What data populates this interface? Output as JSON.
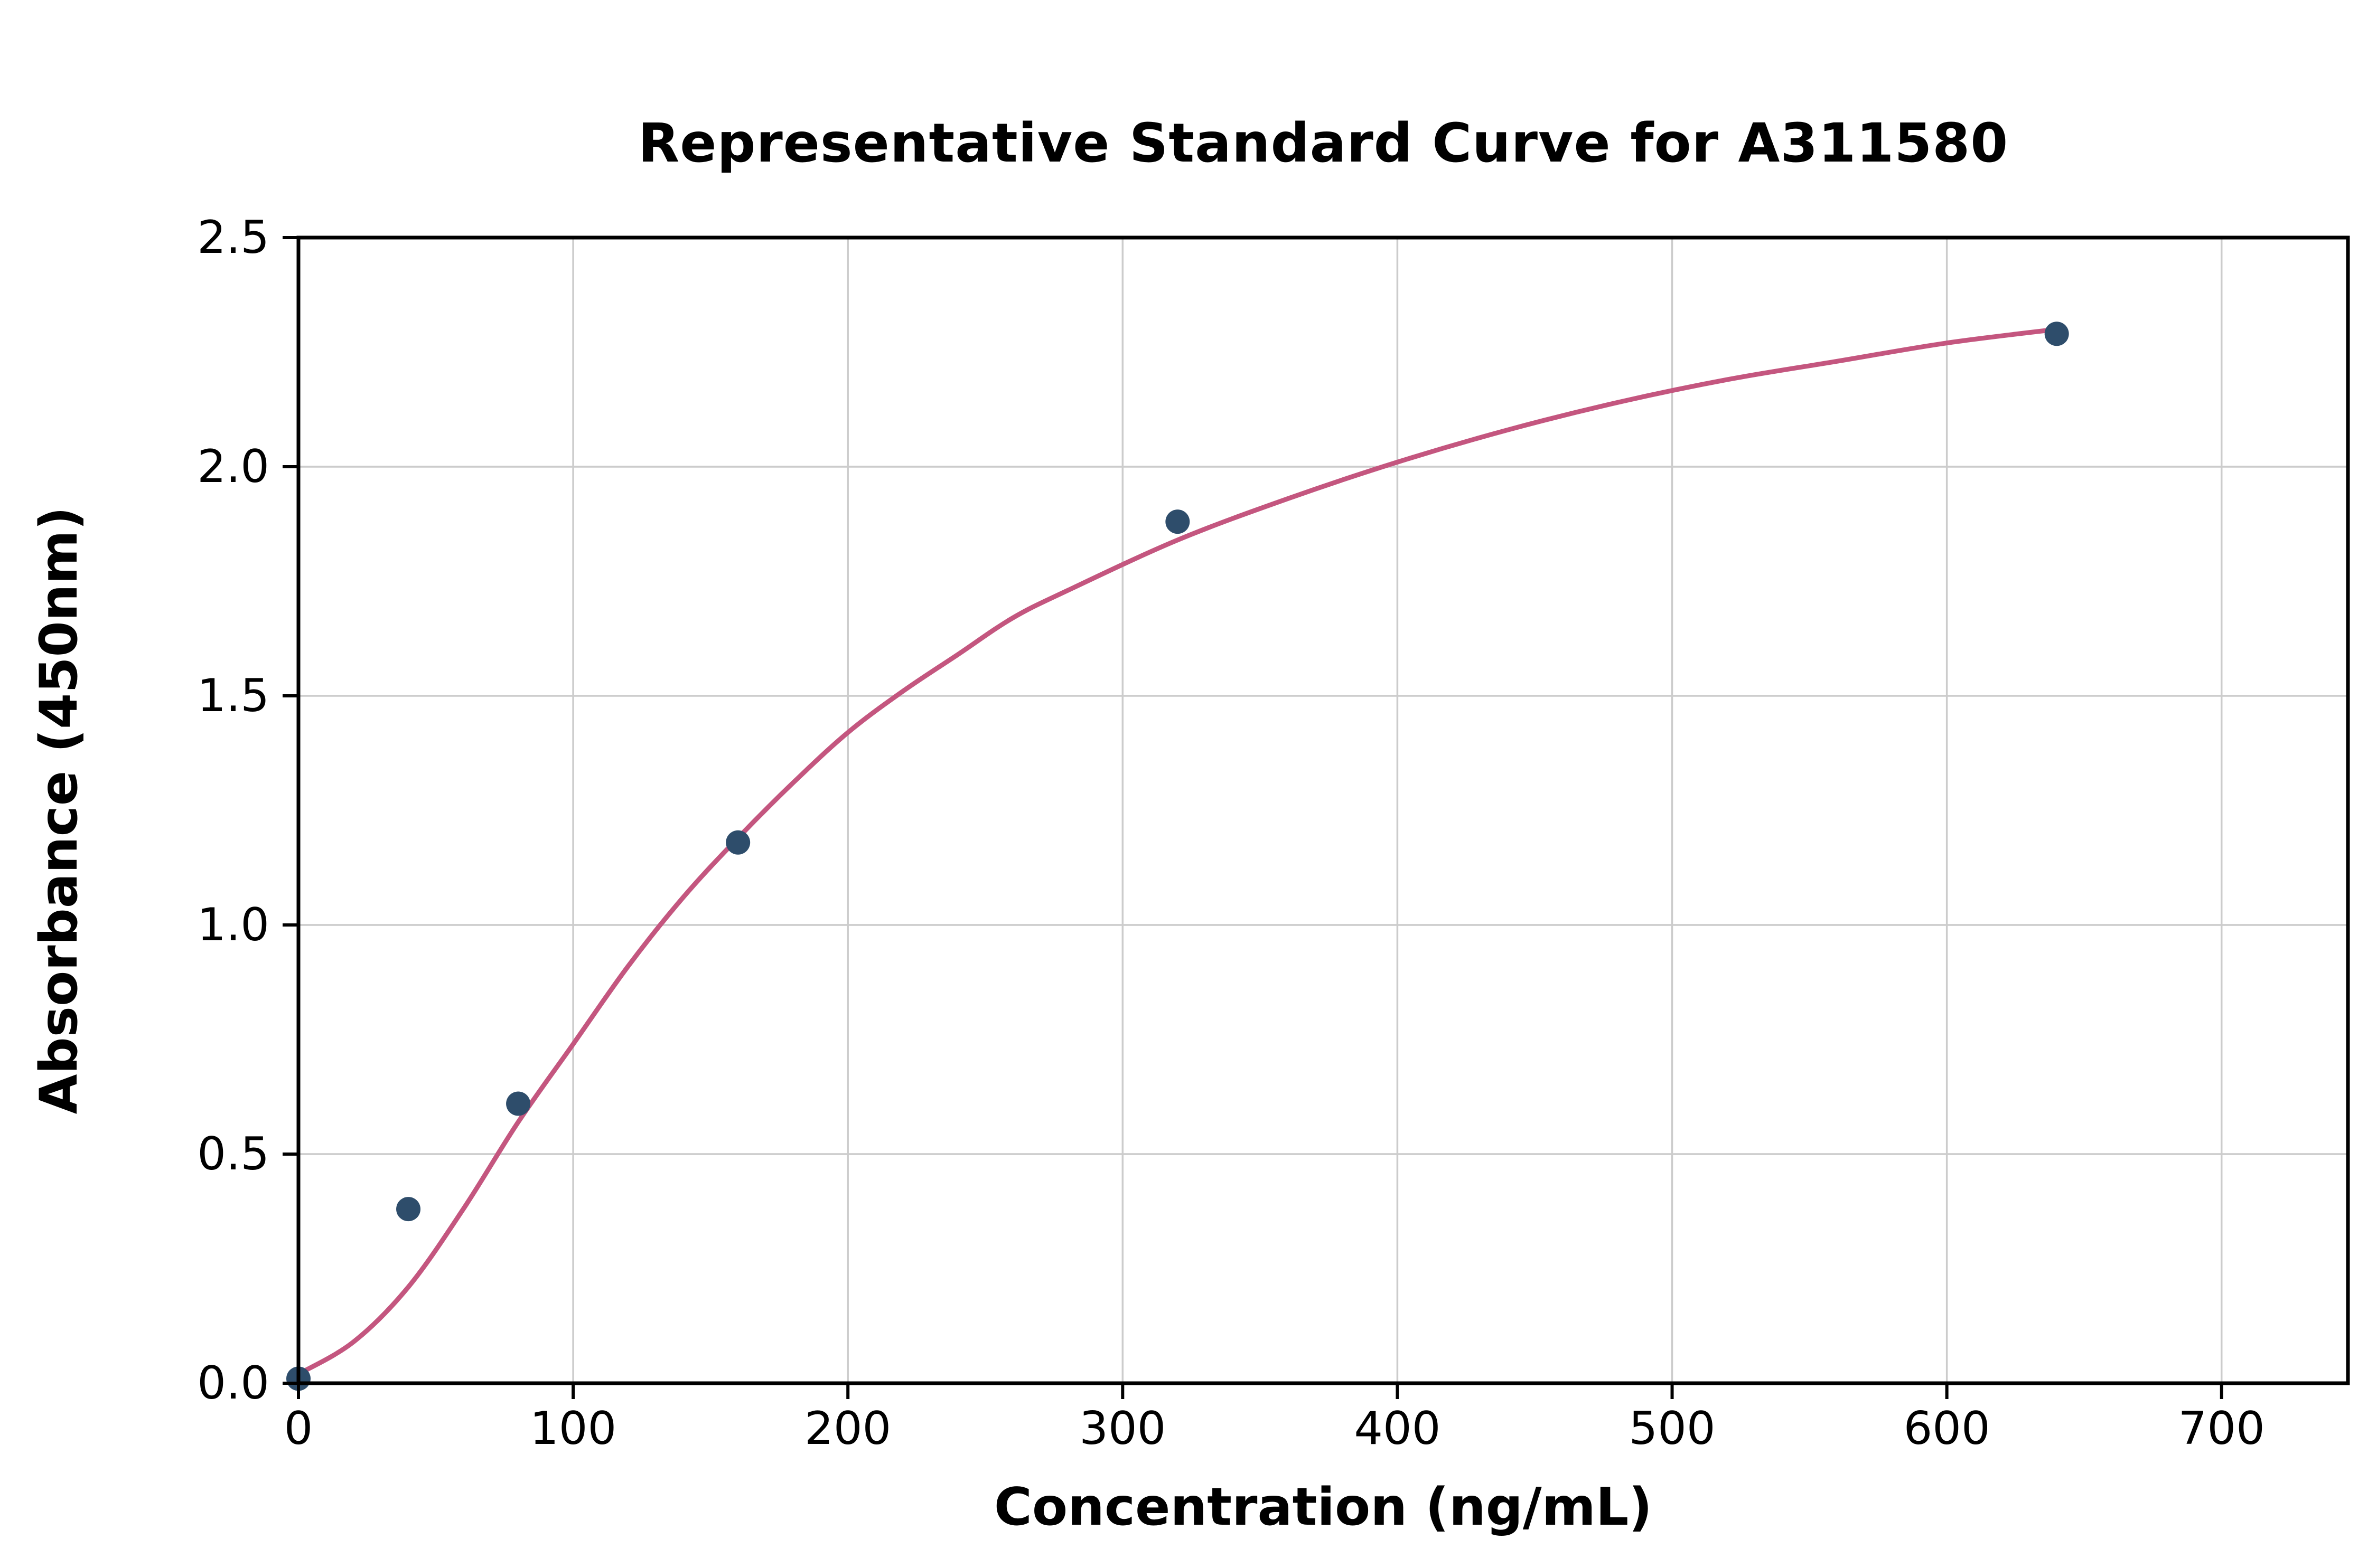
{
  "chart_data": {
    "type": "scatter",
    "title": "Representative Standard Curve for A311580",
    "xlabel": "Concentration (ng/mL)",
    "ylabel": "Absorbance (450nm)",
    "xlim": [
      0,
      746
    ],
    "ylim": [
      0,
      2.5
    ],
    "x_ticks": [
      0,
      100,
      200,
      300,
      400,
      500,
      600,
      700
    ],
    "y_ticks": [
      0,
      0.5,
      1,
      1.5,
      2,
      2.5
    ],
    "grid": true,
    "legend": "none",
    "colors": {
      "points": "#2e4d6b",
      "curve": "#c4567f",
      "grid": "#cccccc",
      "axis": "#000000",
      "background": "#ffffff"
    },
    "series": [
      {
        "name": "fit-curve",
        "type": "line",
        "color": "#c4567f",
        "points": [
          [
            0,
            0.02
          ],
          [
            20,
            0.09
          ],
          [
            40,
            0.21
          ],
          [
            60,
            0.38
          ],
          [
            80,
            0.57
          ],
          [
            100,
            0.74
          ],
          [
            120,
            0.91
          ],
          [
            140,
            1.06
          ],
          [
            160,
            1.19
          ],
          [
            180,
            1.31
          ],
          [
            200,
            1.42
          ],
          [
            220,
            1.51
          ],
          [
            240,
            1.59
          ],
          [
            260,
            1.67
          ],
          [
            280,
            1.73
          ],
          [
            320,
            1.84
          ],
          [
            360,
            1.93
          ],
          [
            400,
            2.01
          ],
          [
            440,
            2.08
          ],
          [
            480,
            2.14
          ],
          [
            520,
            2.19
          ],
          [
            560,
            2.23
          ],
          [
            600,
            2.27
          ],
          [
            640,
            2.3
          ]
        ]
      },
      {
        "name": "standards",
        "type": "scatter",
        "color": "#2e4d6b",
        "points": [
          [
            0,
            0.01
          ],
          [
            40,
            0.38
          ],
          [
            80,
            0.61
          ],
          [
            160,
            1.18
          ],
          [
            320,
            1.88
          ],
          [
            640,
            2.29
          ]
        ]
      }
    ]
  }
}
